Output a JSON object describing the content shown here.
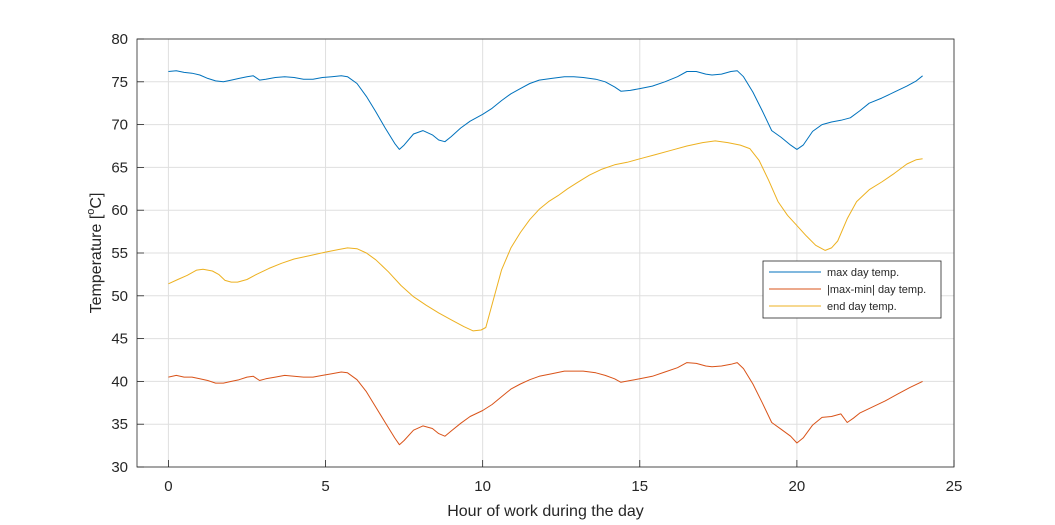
{
  "chart_data": {
    "type": "line",
    "title": "",
    "xlabel": "Hour of work during the day",
    "ylabel_main": "Temperature [",
    "ylabel_sup": "o",
    "ylabel_end": "C]",
    "xlim": [
      -1,
      25
    ],
    "ylim": [
      30,
      80
    ],
    "xticks": [
      0,
      5,
      10,
      15,
      20,
      25
    ],
    "yticks": [
      30,
      35,
      40,
      45,
      50,
      55,
      60,
      65,
      70,
      75,
      80
    ],
    "grid": true,
    "legend_position": "right",
    "series": [
      {
        "name": "max day temp.",
        "color": "#0072BD",
        "points": [
          [
            0,
            76.2
          ],
          [
            0.25,
            76.3
          ],
          [
            0.5,
            76.1
          ],
          [
            0.75,
            76.0
          ],
          [
            1.0,
            75.8
          ],
          [
            1.25,
            75.4
          ],
          [
            1.5,
            75.1
          ],
          [
            1.75,
            75.0
          ],
          [
            2.0,
            75.2
          ],
          [
            2.25,
            75.4
          ],
          [
            2.5,
            75.6
          ],
          [
            2.7,
            75.7
          ],
          [
            2.9,
            75.2
          ],
          [
            3.1,
            75.3
          ],
          [
            3.4,
            75.5
          ],
          [
            3.7,
            75.6
          ],
          [
            4.0,
            75.5
          ],
          [
            4.3,
            75.3
          ],
          [
            4.6,
            75.3
          ],
          [
            4.9,
            75.5
          ],
          [
            5.2,
            75.6
          ],
          [
            5.5,
            75.7
          ],
          [
            5.7,
            75.6
          ],
          [
            6.0,
            74.8
          ],
          [
            6.3,
            73.3
          ],
          [
            6.6,
            71.5
          ],
          [
            6.9,
            69.6
          ],
          [
            7.2,
            67.8
          ],
          [
            7.35,
            67.1
          ],
          [
            7.5,
            67.6
          ],
          [
            7.8,
            68.9
          ],
          [
            8.1,
            69.3
          ],
          [
            8.4,
            68.8
          ],
          [
            8.6,
            68.2
          ],
          [
            8.8,
            68.0
          ],
          [
            9.0,
            68.6
          ],
          [
            9.3,
            69.6
          ],
          [
            9.6,
            70.4
          ],
          [
            10.0,
            71.2
          ],
          [
            10.3,
            71.9
          ],
          [
            10.6,
            72.8
          ],
          [
            10.9,
            73.6
          ],
          [
            11.2,
            74.2
          ],
          [
            11.5,
            74.8
          ],
          [
            11.8,
            75.2
          ],
          [
            12.2,
            75.4
          ],
          [
            12.6,
            75.6
          ],
          [
            12.9,
            75.6
          ],
          [
            13.2,
            75.5
          ],
          [
            13.6,
            75.3
          ],
          [
            13.9,
            75.0
          ],
          [
            14.2,
            74.4
          ],
          [
            14.4,
            73.9
          ],
          [
            14.7,
            74.0
          ],
          [
            15.0,
            74.2
          ],
          [
            15.4,
            74.5
          ],
          [
            15.8,
            75.0
          ],
          [
            16.2,
            75.6
          ],
          [
            16.5,
            76.2
          ],
          [
            16.8,
            76.2
          ],
          [
            17.1,
            75.9
          ],
          [
            17.3,
            75.8
          ],
          [
            17.6,
            75.9
          ],
          [
            17.9,
            76.2
          ],
          [
            18.1,
            76.3
          ],
          [
            18.3,
            75.6
          ],
          [
            18.6,
            73.8
          ],
          [
            18.9,
            71.6
          ],
          [
            19.2,
            69.3
          ],
          [
            19.5,
            68.5
          ],
          [
            19.8,
            67.6
          ],
          [
            20.0,
            67.1
          ],
          [
            20.2,
            67.6
          ],
          [
            20.5,
            69.2
          ],
          [
            20.8,
            70.0
          ],
          [
            21.1,
            70.3
          ],
          [
            21.4,
            70.5
          ],
          [
            21.7,
            70.8
          ],
          [
            22.0,
            71.6
          ],
          [
            22.3,
            72.5
          ],
          [
            22.7,
            73.1
          ],
          [
            23.1,
            73.8
          ],
          [
            23.5,
            74.5
          ],
          [
            23.8,
            75.1
          ],
          [
            24.0,
            75.7
          ]
        ]
      },
      {
        "name": "|max-min| day temp.",
        "color": "#D95319",
        "points": [
          [
            0,
            40.5
          ],
          [
            0.25,
            40.7
          ],
          [
            0.5,
            40.5
          ],
          [
            0.75,
            40.5
          ],
          [
            1.0,
            40.3
          ],
          [
            1.25,
            40.1
          ],
          [
            1.5,
            39.8
          ],
          [
            1.75,
            39.8
          ],
          [
            2.0,
            40.0
          ],
          [
            2.25,
            40.2
          ],
          [
            2.5,
            40.5
          ],
          [
            2.7,
            40.6
          ],
          [
            2.9,
            40.1
          ],
          [
            3.1,
            40.3
          ],
          [
            3.4,
            40.5
          ],
          [
            3.7,
            40.7
          ],
          [
            4.0,
            40.6
          ],
          [
            4.3,
            40.5
          ],
          [
            4.6,
            40.5
          ],
          [
            4.9,
            40.7
          ],
          [
            5.2,
            40.9
          ],
          [
            5.5,
            41.1
          ],
          [
            5.7,
            41.0
          ],
          [
            6.0,
            40.2
          ],
          [
            6.3,
            38.8
          ],
          [
            6.6,
            37.0
          ],
          [
            6.9,
            35.2
          ],
          [
            7.2,
            33.4
          ],
          [
            7.35,
            32.6
          ],
          [
            7.5,
            33.1
          ],
          [
            7.8,
            34.3
          ],
          [
            8.1,
            34.8
          ],
          [
            8.4,
            34.5
          ],
          [
            8.6,
            33.9
          ],
          [
            8.8,
            33.6
          ],
          [
            9.0,
            34.2
          ],
          [
            9.3,
            35.1
          ],
          [
            9.6,
            35.9
          ],
          [
            10.0,
            36.6
          ],
          [
            10.3,
            37.3
          ],
          [
            10.6,
            38.2
          ],
          [
            10.9,
            39.1
          ],
          [
            11.2,
            39.7
          ],
          [
            11.5,
            40.2
          ],
          [
            11.8,
            40.6
          ],
          [
            12.2,
            40.9
          ],
          [
            12.6,
            41.2
          ],
          [
            12.9,
            41.2
          ],
          [
            13.2,
            41.2
          ],
          [
            13.6,
            41.0
          ],
          [
            13.9,
            40.7
          ],
          [
            14.2,
            40.3
          ],
          [
            14.4,
            39.9
          ],
          [
            14.7,
            40.1
          ],
          [
            15.0,
            40.3
          ],
          [
            15.4,
            40.6
          ],
          [
            15.8,
            41.1
          ],
          [
            16.2,
            41.6
          ],
          [
            16.5,
            42.2
          ],
          [
            16.8,
            42.1
          ],
          [
            17.1,
            41.8
          ],
          [
            17.3,
            41.7
          ],
          [
            17.6,
            41.8
          ],
          [
            17.9,
            42.0
          ],
          [
            18.1,
            42.2
          ],
          [
            18.3,
            41.5
          ],
          [
            18.6,
            39.7
          ],
          [
            18.9,
            37.5
          ],
          [
            19.2,
            35.2
          ],
          [
            19.5,
            34.4
          ],
          [
            19.8,
            33.6
          ],
          [
            20.0,
            32.8
          ],
          [
            20.2,
            33.4
          ],
          [
            20.5,
            34.9
          ],
          [
            20.8,
            35.8
          ],
          [
            21.1,
            35.9
          ],
          [
            21.4,
            36.2
          ],
          [
            21.6,
            35.2
          ],
          [
            21.8,
            35.7
          ],
          [
            22.0,
            36.3
          ],
          [
            22.4,
            37.0
          ],
          [
            22.8,
            37.7
          ],
          [
            23.2,
            38.5
          ],
          [
            23.6,
            39.3
          ],
          [
            24.0,
            40.0
          ]
        ]
      },
      {
        "name": "end day temp.",
        "color": "#EDB120",
        "points": [
          [
            0,
            51.4
          ],
          [
            0.3,
            51.9
          ],
          [
            0.6,
            52.4
          ],
          [
            0.9,
            53.0
          ],
          [
            1.1,
            53.1
          ],
          [
            1.4,
            52.9
          ],
          [
            1.6,
            52.5
          ],
          [
            1.8,
            51.8
          ],
          [
            2.0,
            51.6
          ],
          [
            2.2,
            51.6
          ],
          [
            2.5,
            51.9
          ],
          [
            2.8,
            52.5
          ],
          [
            3.2,
            53.2
          ],
          [
            3.6,
            53.8
          ],
          [
            4.0,
            54.3
          ],
          [
            4.5,
            54.7
          ],
          [
            5.0,
            55.1
          ],
          [
            5.4,
            55.4
          ],
          [
            5.7,
            55.6
          ],
          [
            6.0,
            55.5
          ],
          [
            6.3,
            55.0
          ],
          [
            6.6,
            54.2
          ],
          [
            7.0,
            52.8
          ],
          [
            7.4,
            51.2
          ],
          [
            7.8,
            49.9
          ],
          [
            8.2,
            48.9
          ],
          [
            8.6,
            48.0
          ],
          [
            9.0,
            47.2
          ],
          [
            9.4,
            46.4
          ],
          [
            9.7,
            45.9
          ],
          [
            9.95,
            46.0
          ],
          [
            10.1,
            46.3
          ],
          [
            10.3,
            49.0
          ],
          [
            10.6,
            53.0
          ],
          [
            10.9,
            55.6
          ],
          [
            11.2,
            57.4
          ],
          [
            11.5,
            58.9
          ],
          [
            11.8,
            60.1
          ],
          [
            12.1,
            61.0
          ],
          [
            12.4,
            61.7
          ],
          [
            12.7,
            62.5
          ],
          [
            13.0,
            63.2
          ],
          [
            13.4,
            64.1
          ],
          [
            13.8,
            64.8
          ],
          [
            14.2,
            65.3
          ],
          [
            14.6,
            65.6
          ],
          [
            15.0,
            66.0
          ],
          [
            15.5,
            66.5
          ],
          [
            16.0,
            67.0
          ],
          [
            16.5,
            67.5
          ],
          [
            17.0,
            67.9
          ],
          [
            17.4,
            68.1
          ],
          [
            17.8,
            67.9
          ],
          [
            18.2,
            67.6
          ],
          [
            18.5,
            67.2
          ],
          [
            18.8,
            65.8
          ],
          [
            19.1,
            63.5
          ],
          [
            19.4,
            61.0
          ],
          [
            19.7,
            59.4
          ],
          [
            20.0,
            58.2
          ],
          [
            20.3,
            57.0
          ],
          [
            20.6,
            55.9
          ],
          [
            20.9,
            55.3
          ],
          [
            21.1,
            55.6
          ],
          [
            21.3,
            56.4
          ],
          [
            21.6,
            59.0
          ],
          [
            21.9,
            61.0
          ],
          [
            22.3,
            62.4
          ],
          [
            22.7,
            63.3
          ],
          [
            23.1,
            64.3
          ],
          [
            23.5,
            65.4
          ],
          [
            23.8,
            65.9
          ],
          [
            24.0,
            66.0
          ]
        ]
      }
    ]
  }
}
